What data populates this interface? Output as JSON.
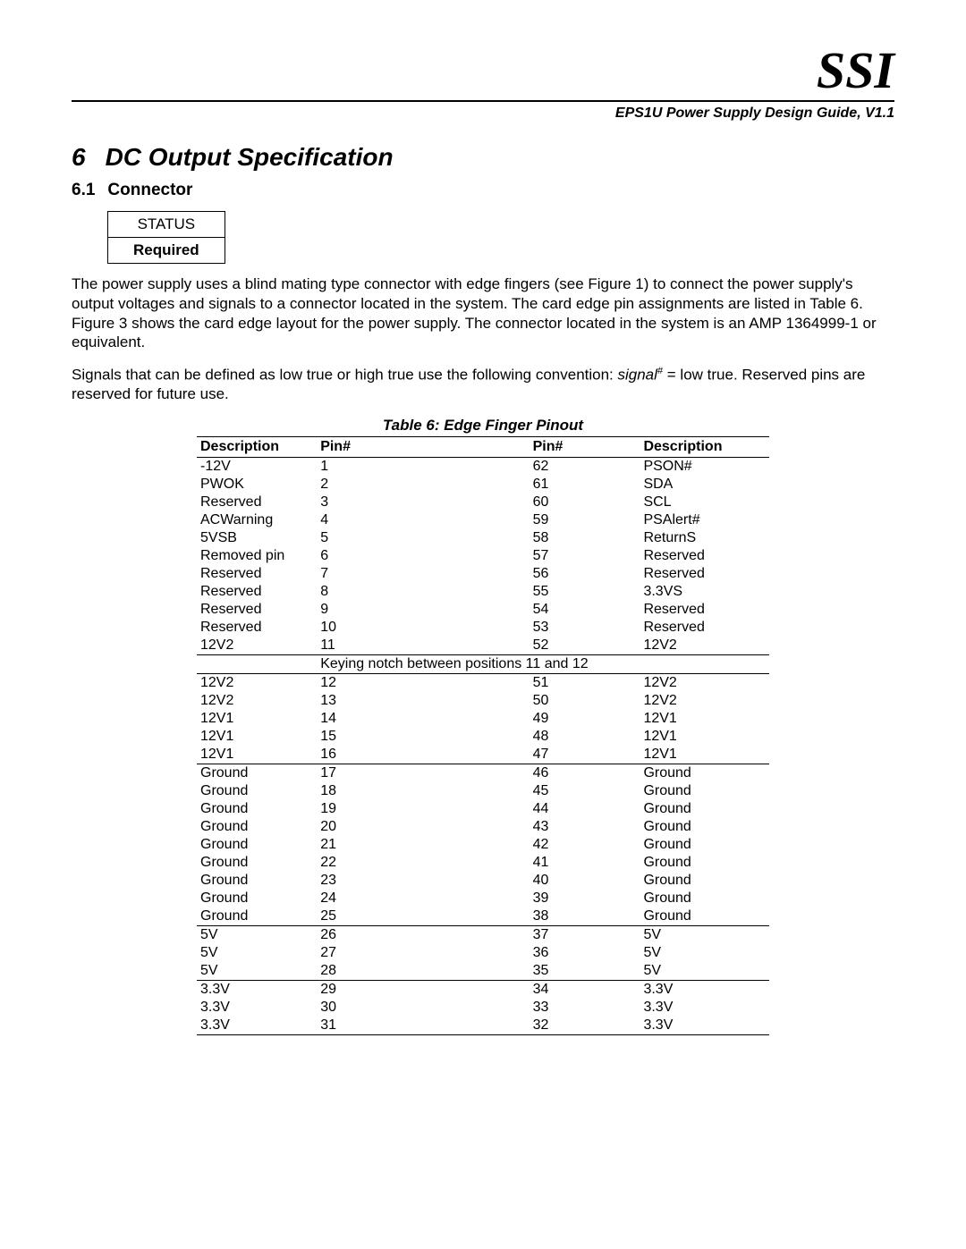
{
  "logo": "SSI",
  "doc_title": "EPS1U Power Supply Design Guide, V1.1",
  "section": {
    "num": "6",
    "title": "DC Output Specification"
  },
  "subsection": {
    "num": "6.1",
    "title": "Connector"
  },
  "status_box": {
    "label": "STATUS",
    "value": "Required"
  },
  "para1": "The power supply uses a blind mating type connector with edge fingers (see Figure 1) to connect the power supply's output voltages and signals to a connector located in the system.  The card edge pin assignments are listed in Table 6.  Figure 3 shows the card edge layout for the power supply.  The connector located in the system is an AMP 1364999-1 or equivalent.",
  "para2_a": "Signals that can be defined as low true or high true use the following convention:  ",
  "para2_signal": "signal",
  "para2_hash": "#",
  "para2_b": " = low true.  Reserved pins are reserved for future use.",
  "table_caption": "Table 6:  Edge Finger Pinout",
  "headers": {
    "c1": "Description",
    "c2": "Pin#",
    "c3": "Pin#",
    "c4": "Description"
  },
  "keying_text": "Keying notch between positions 11 and 12",
  "groups": [
    {
      "rows": [
        {
          "d1": "-12V",
          "p1": "1",
          "p2": "62",
          "d2": "PSON#"
        },
        {
          "d1": "PWOK",
          "p1": "2",
          "p2": "61",
          "d2": "SDA"
        },
        {
          "d1": "Reserved",
          "p1": "3",
          "p2": "60",
          "d2": "SCL"
        },
        {
          "d1": "ACWarning",
          "p1": "4",
          "p2": "59",
          "d2": "PSAlert#"
        },
        {
          "d1": "5VSB",
          "p1": "5",
          "p2": "58",
          "d2": "ReturnS"
        },
        {
          "d1": "Removed pin",
          "p1": "6",
          "p2": "57",
          "d2": "Reserved"
        },
        {
          "d1": "Reserved",
          "p1": "7",
          "p2": "56",
          "d2": "Reserved"
        },
        {
          "d1": "Reserved",
          "p1": "8",
          "p2": "55",
          "d2": "3.3VS"
        },
        {
          "d1": "Reserved",
          "p1": "9",
          "p2": "54",
          "d2": "Reserved"
        },
        {
          "d1": "Reserved",
          "p1": "10",
          "p2": "53",
          "d2": "Reserved"
        },
        {
          "d1": "12V2",
          "p1": "11",
          "p2": "52",
          "d2": "12V2"
        }
      ]
    },
    {
      "rows": [
        {
          "d1": "12V2",
          "p1": "12",
          "p2": "51",
          "d2": "12V2"
        },
        {
          "d1": "12V2",
          "p1": "13",
          "p2": "50",
          "d2": "12V2"
        },
        {
          "d1": "12V1",
          "p1": "14",
          "p2": "49",
          "d2": "12V1"
        },
        {
          "d1": "12V1",
          "p1": "15",
          "p2": "48",
          "d2": "12V1"
        },
        {
          "d1": "12V1",
          "p1": "16",
          "p2": "47",
          "d2": "12V1"
        }
      ]
    },
    {
      "rows": [
        {
          "d1": "Ground",
          "p1": "17",
          "p2": "46",
          "d2": "Ground"
        },
        {
          "d1": "Ground",
          "p1": "18",
          "p2": "45",
          "d2": "Ground"
        },
        {
          "d1": "Ground",
          "p1": "19",
          "p2": "44",
          "d2": "Ground"
        },
        {
          "d1": "Ground",
          "p1": "20",
          "p2": "43",
          "d2": "Ground"
        },
        {
          "d1": "Ground",
          "p1": "21",
          "p2": "42",
          "d2": "Ground"
        },
        {
          "d1": "Ground",
          "p1": "22",
          "p2": "41",
          "d2": "Ground"
        },
        {
          "d1": "Ground",
          "p1": "23",
          "p2": "40",
          "d2": "Ground"
        },
        {
          "d1": "Ground",
          "p1": "24",
          "p2": "39",
          "d2": "Ground"
        },
        {
          "d1": "Ground",
          "p1": "25",
          "p2": "38",
          "d2": "Ground"
        }
      ]
    },
    {
      "rows": [
        {
          "d1": "5V",
          "p1": "26",
          "p2": "37",
          "d2": "5V"
        },
        {
          "d1": "5V",
          "p1": "27",
          "p2": "36",
          "d2": "5V"
        },
        {
          "d1": "5V",
          "p1": "28",
          "p2": "35",
          "d2": "5V"
        }
      ]
    },
    {
      "rows": [
        {
          "d1": "3.3V",
          "p1": "29",
          "p2": "34",
          "d2": "3.3V"
        },
        {
          "d1": "3.3V",
          "p1": "30",
          "p2": "33",
          "d2": "3.3V"
        },
        {
          "d1": "3.3V",
          "p1": "31",
          "p2": "32",
          "d2": "3.3V"
        }
      ]
    }
  ]
}
